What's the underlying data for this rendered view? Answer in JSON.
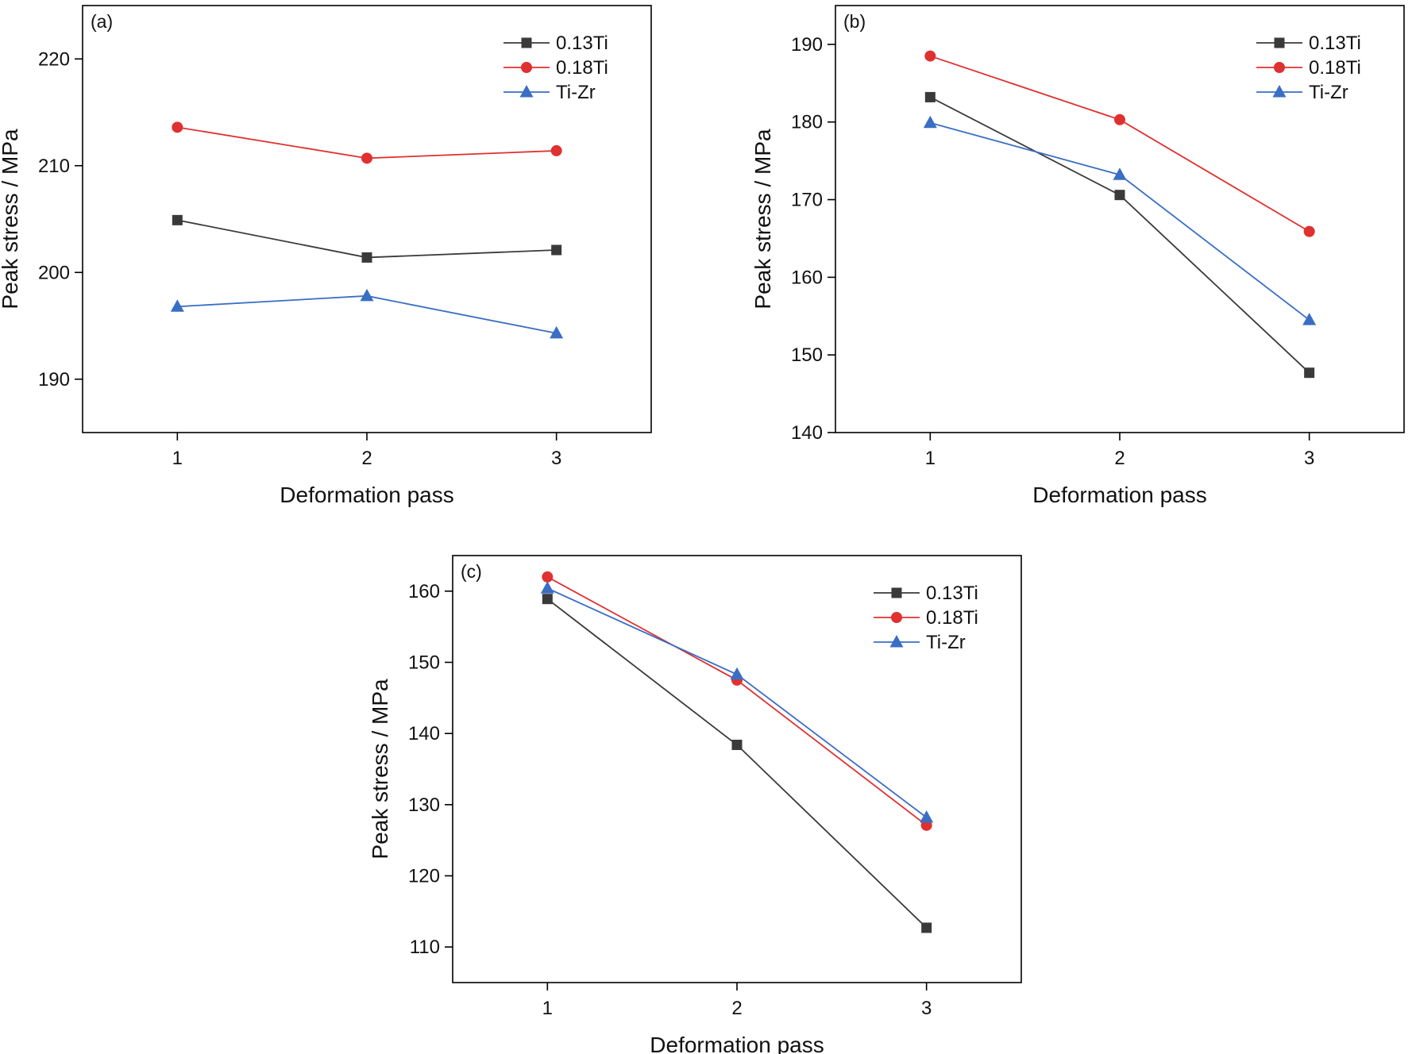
{
  "colors": {
    "0.13Ti": "#3a3a3a",
    "0.18Ti": "#e03030",
    "Ti-Zr": "#3a6ec4"
  },
  "chart_data": [
    {
      "type": "line",
      "panel_label": "(a)",
      "xlabel": "Deformation pass",
      "ylabel": "Peak stress / MPa",
      "x": [
        1,
        2,
        3
      ],
      "x_ticks": [
        "1",
        "2",
        "3"
      ],
      "xlim": [
        0.5,
        3.5
      ],
      "ylim": [
        185,
        225
      ],
      "y_ticks": [
        "190",
        "200",
        "210",
        "220"
      ],
      "grid": false,
      "legend_position": "top-right",
      "series": [
        {
          "name": "0.13Ti",
          "marker": "square",
          "color": "#3a3a3a",
          "values": [
            204.9,
            201.4,
            202.1
          ]
        },
        {
          "name": "0.18Ti",
          "marker": "circle",
          "color": "#e03030",
          "values": [
            213.6,
            210.7,
            211.4
          ]
        },
        {
          "name": "Ti-Zr",
          "marker": "triangle",
          "color": "#3a6ec4",
          "values": [
            196.8,
            197.8,
            194.3
          ]
        }
      ]
    },
    {
      "type": "line",
      "panel_label": "(b)",
      "xlabel": "Deformation pass",
      "ylabel": "Peak stress / MPa",
      "x": [
        1,
        2,
        3
      ],
      "x_ticks": [
        "1",
        "2",
        "3"
      ],
      "xlim": [
        0.5,
        3.5
      ],
      "ylim": [
        140,
        195
      ],
      "y_ticks": [
        "140",
        "150",
        "160",
        "170",
        "180",
        "190"
      ],
      "grid": false,
      "legend_position": "top-right",
      "series": [
        {
          "name": "0.13Ti",
          "marker": "square",
          "color": "#3a3a3a",
          "values": [
            183.2,
            170.6,
            147.7
          ]
        },
        {
          "name": "0.18Ti",
          "marker": "circle",
          "color": "#e03030",
          "values": [
            188.5,
            180.3,
            165.9
          ]
        },
        {
          "name": "Ti-Zr",
          "marker": "triangle",
          "color": "#3a6ec4",
          "values": [
            179.9,
            173.2,
            154.5
          ]
        }
      ]
    },
    {
      "type": "line",
      "panel_label": "(c)",
      "xlabel": "Deformation pass",
      "ylabel": "Peak stress / MPa",
      "x": [
        1,
        2,
        3
      ],
      "x_ticks": [
        "1",
        "2",
        "3"
      ],
      "xlim": [
        0.5,
        3.5
      ],
      "ylim": [
        105,
        165
      ],
      "y_ticks": [
        "110",
        "120",
        "130",
        "140",
        "150",
        "160"
      ],
      "grid": false,
      "legend_position": "top-right",
      "series": [
        {
          "name": "0.13Ti",
          "marker": "square",
          "color": "#3a3a3a",
          "values": [
            158.9,
            138.4,
            112.7
          ]
        },
        {
          "name": "0.18Ti",
          "marker": "circle",
          "color": "#e03030",
          "values": [
            162.0,
            147.5,
            127.1
          ]
        },
        {
          "name": "Ti-Zr",
          "marker": "triangle",
          "color": "#3a6ec4",
          "values": [
            160.4,
            148.3,
            128.2
          ]
        }
      ]
    }
  ]
}
